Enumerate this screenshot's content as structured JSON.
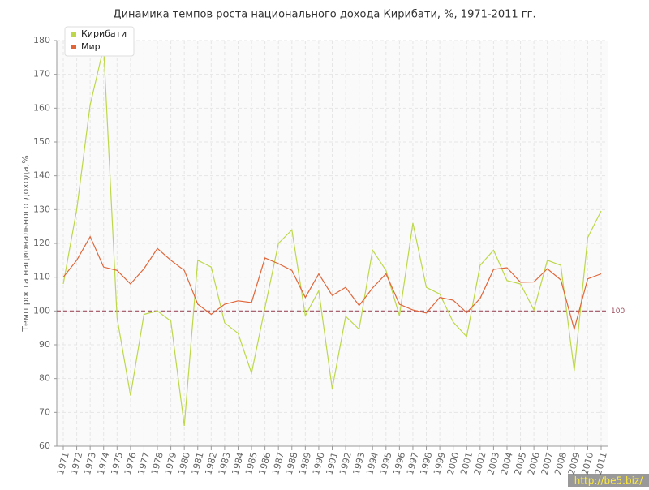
{
  "chart_data": {
    "type": "line",
    "title": "Динамика темпов роста национального дохода Кирибати, %, 1971-2011 гг.",
    "y_label": "Темп роста национального дохода,%",
    "categories": [
      "1971",
      "1972",
      "1973",
      "1974",
      "1975",
      "1976",
      "1977",
      "1978",
      "1979",
      "1980",
      "1981",
      "1982",
      "1983",
      "1984",
      "1985",
      "1986",
      "1987",
      "1988",
      "1989",
      "1990",
      "1991",
      "1992",
      "1993",
      "1994",
      "1995",
      "1996",
      "1997",
      "1998",
      "1999",
      "2000",
      "2001",
      "2002",
      "2003",
      "2004",
      "2005",
      "2006",
      "2007",
      "2008",
      "2009",
      "2010",
      "2011"
    ],
    "series": [
      {
        "name": "Кирибати",
        "color": "#bcd84a",
        "values": [
          108,
          130,
          161,
          178,
          98,
          75,
          99,
          100,
          97,
          66,
          115,
          113,
          96.5,
          93.4,
          81.6,
          101,
          120,
          124,
          98.6,
          106,
          77,
          98.4,
          94.6,
          118,
          112,
          98.6,
          126,
          107,
          105,
          96.7,
          92.4,
          113.5,
          118,
          109,
          108,
          100.3,
          115,
          113.5,
          82.3,
          121.7,
          129.6
        ]
      },
      {
        "name": "Мир",
        "color": "#e0663a",
        "values": [
          110,
          115,
          122,
          113,
          112,
          108,
          112.5,
          118.5,
          115,
          112,
          102,
          99,
          102,
          103,
          102.5,
          115.7,
          114,
          112,
          104,
          111,
          104.6,
          107,
          101.6,
          106.8,
          111,
          102,
          100.3,
          99.4,
          104,
          103.2,
          99.5,
          103.7,
          112.3,
          112.8,
          108.5,
          108.6,
          112.5,
          109.2,
          94.6,
          109.5,
          111
        ]
      }
    ],
    "ylim": [
      60,
      180
    ],
    "yticks": [
      60,
      70,
      80,
      90,
      100,
      110,
      120,
      130,
      140,
      150,
      160,
      170,
      180
    ],
    "reference_line": 100,
    "reference_color": "#a05060",
    "grid": true,
    "legend": "top-left",
    "watermark": "http://be5.biz/"
  }
}
